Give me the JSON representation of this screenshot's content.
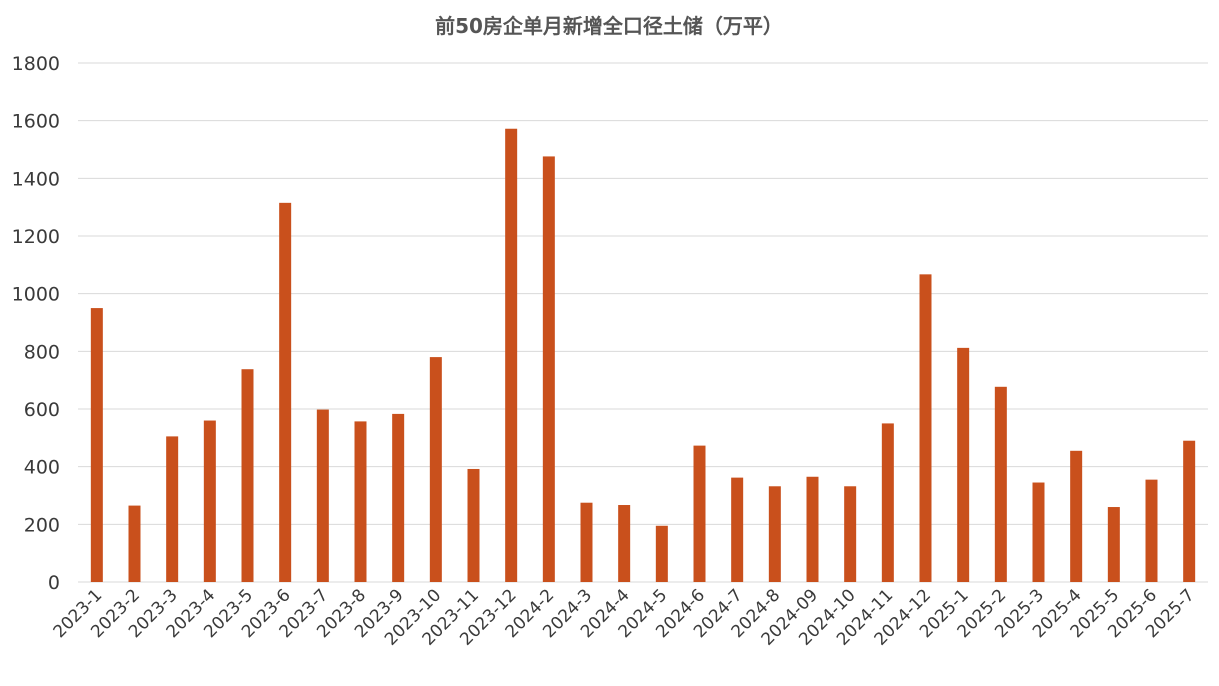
{
  "chart_data": {
    "type": "bar",
    "title": "前50房企单月新增全口径土储（万平）",
    "xlabel": "",
    "ylabel": "",
    "ylim": [
      0,
      1800
    ],
    "yticks": [
      0,
      200,
      400,
      600,
      800,
      1000,
      1200,
      1400,
      1600,
      1800
    ],
    "grid": true,
    "legend": "none",
    "bar_color": "#c9501c",
    "categories": [
      "2023-1",
      "2023-2",
      "2023-3",
      "2023-4",
      "2023-5",
      "2023-6",
      "2023-7",
      "2023-8",
      "2023-9",
      "2023-10",
      "2023-11",
      "2023-12",
      "2024-2",
      "2024-3",
      "2024-4",
      "2024-5",
      "2024-6",
      "2024-7",
      "2024-8",
      "2024-09",
      "2024-10",
      "2024-11",
      "2024-12",
      "2025-1",
      "2025-2",
      "2025-3",
      "2025-4",
      "2025-5",
      "2025-6",
      "2025-7"
    ],
    "values": [
      950,
      265,
      505,
      560,
      738,
      1315,
      598,
      557,
      583,
      780,
      392,
      1572,
      1476,
      275,
      267,
      195,
      473,
      362,
      332,
      365,
      332,
      550,
      1067,
      812,
      677,
      345,
      455,
      260,
      355,
      490
    ]
  }
}
